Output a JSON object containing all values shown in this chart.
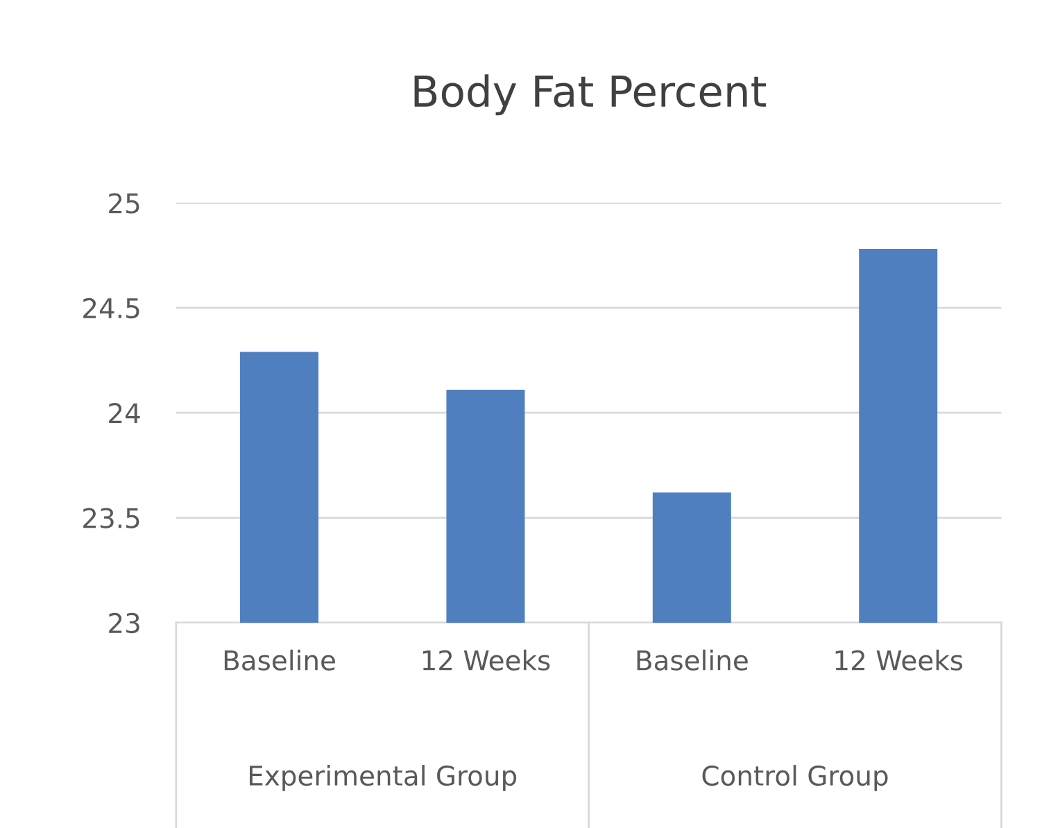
{
  "chart_data": {
    "type": "bar",
    "title": "Body Fat Percent",
    "categories": [
      "Baseline",
      "12 Weeks",
      "Baseline",
      "12 Weeks"
    ],
    "values": [
      24.29,
      24.11,
      23.62,
      24.78
    ],
    "color": "#4f7fbf",
    "ylim": [
      23,
      25
    ],
    "yticks": [
      23,
      23.5,
      24,
      24.5,
      25
    ],
    "grid": "y",
    "annotations": [
      "Experimental Group",
      "Control Group"
    ]
  }
}
